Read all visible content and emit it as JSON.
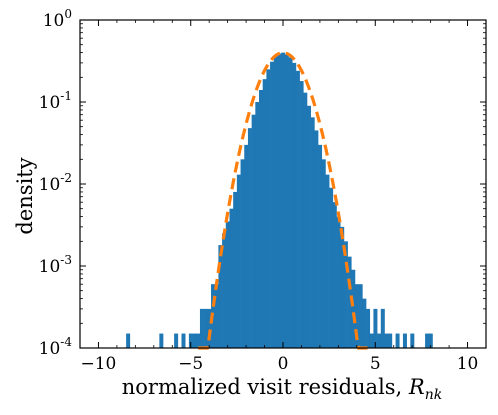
{
  "chart_data": {
    "type": "bar",
    "title": "",
    "xlabel": "normalized visit residuals, ",
    "xlabel_math": "R",
    "xlabel_sub": "nk",
    "ylabel": "density",
    "xlim": [
      -11,
      11
    ],
    "ylim": [
      0.0001,
      1
    ],
    "yscale": "log",
    "grid": false,
    "x_ticks": [
      -10,
      -5,
      0,
      5,
      10
    ],
    "x_tick_labels": [
      "−10",
      "−5",
      "0",
      "5",
      "10"
    ],
    "y_ticks": [
      0.0001,
      0.001,
      0.01,
      0.1,
      1
    ],
    "y_tick_bases": [
      "10",
      "10",
      "10",
      "10",
      "10"
    ],
    "y_tick_exps": [
      "-4",
      "-3",
      "-2",
      "-1",
      "0"
    ],
    "series": [
      {
        "type": "histogram",
        "color": "#1f77b4",
        "bin_width": 0.2,
        "bins": [
          {
            "x": -8.4,
            "y": 0.00015
          },
          {
            "x": -6.6,
            "y": 0.00015
          },
          {
            "x": -5.8,
            "y": 0.00015
          },
          {
            "x": -5.4,
            "y": 0.00015
          },
          {
            "x": -5.0,
            "y": 0.00015
          },
          {
            "x": -4.8,
            "y": 0.00015
          },
          {
            "x": -4.6,
            "y": 0.00015
          },
          {
            "x": -4.4,
            "y": 0.0003
          },
          {
            "x": -4.2,
            "y": 0.0003
          },
          {
            "x": -4.0,
            "y": 0.0003
          },
          {
            "x": -3.8,
            "y": 0.0006
          },
          {
            "x": -3.6,
            "y": 0.0006
          },
          {
            "x": -3.4,
            "y": 0.0018
          },
          {
            "x": -3.2,
            "y": 0.0025
          },
          {
            "x": -3.0,
            "y": 0.0035
          },
          {
            "x": -2.8,
            "y": 0.005
          },
          {
            "x": -2.6,
            "y": 0.008
          },
          {
            "x": -2.4,
            "y": 0.013
          },
          {
            "x": -2.2,
            "y": 0.02
          },
          {
            "x": -2.0,
            "y": 0.03
          },
          {
            "x": -1.8,
            "y": 0.048
          },
          {
            "x": -1.6,
            "y": 0.07
          },
          {
            "x": -1.4,
            "y": 0.1
          },
          {
            "x": -1.2,
            "y": 0.14
          },
          {
            "x": -1.0,
            "y": 0.19
          },
          {
            "x": -0.8,
            "y": 0.25
          },
          {
            "x": -0.6,
            "y": 0.31
          },
          {
            "x": -0.4,
            "y": 0.36
          },
          {
            "x": -0.2,
            "y": 0.39
          },
          {
            "x": 0.0,
            "y": 0.4
          },
          {
            "x": 0.2,
            "y": 0.38
          },
          {
            "x": 0.4,
            "y": 0.35
          },
          {
            "x": 0.6,
            "y": 0.3
          },
          {
            "x": 0.8,
            "y": 0.24
          },
          {
            "x": 1.0,
            "y": 0.18
          },
          {
            "x": 1.2,
            "y": 0.13
          },
          {
            "x": 1.4,
            "y": 0.09
          },
          {
            "x": 1.6,
            "y": 0.065
          },
          {
            "x": 1.8,
            "y": 0.045
          },
          {
            "x": 2.0,
            "y": 0.03
          },
          {
            "x": 2.2,
            "y": 0.02
          },
          {
            "x": 2.4,
            "y": 0.013
          },
          {
            "x": 2.6,
            "y": 0.009
          },
          {
            "x": 2.8,
            "y": 0.006
          },
          {
            "x": 3.0,
            "y": 0.004
          },
          {
            "x": 3.2,
            "y": 0.003
          },
          {
            "x": 3.4,
            "y": 0.002
          },
          {
            "x": 3.6,
            "y": 0.0013
          },
          {
            "x": 3.8,
            "y": 0.0009
          },
          {
            "x": 4.0,
            "y": 0.0006
          },
          {
            "x": 4.2,
            "y": 0.0006
          },
          {
            "x": 4.4,
            "y": 0.0004
          },
          {
            "x": 4.6,
            "y": 0.0003
          },
          {
            "x": 4.8,
            "y": 0.00015
          },
          {
            "x": 5.0,
            "y": 0.0003
          },
          {
            "x": 5.2,
            "y": 0.00015
          },
          {
            "x": 5.4,
            "y": 0.0003
          },
          {
            "x": 5.6,
            "y": 0.00015
          },
          {
            "x": 5.8,
            "y": 0.00015
          },
          {
            "x": 6.2,
            "y": 0.00015
          },
          {
            "x": 6.6,
            "y": 0.00015
          },
          {
            "x": 7.0,
            "y": 0.00015
          },
          {
            "x": 7.8,
            "y": 0.00015
          },
          {
            "x": 8.0,
            "y": 0.00015
          }
        ]
      },
      {
        "type": "line",
        "style": "dashed",
        "color": "#ff7f0e",
        "function": "standard normal pdf",
        "mean": 0,
        "sd": 1
      }
    ]
  }
}
